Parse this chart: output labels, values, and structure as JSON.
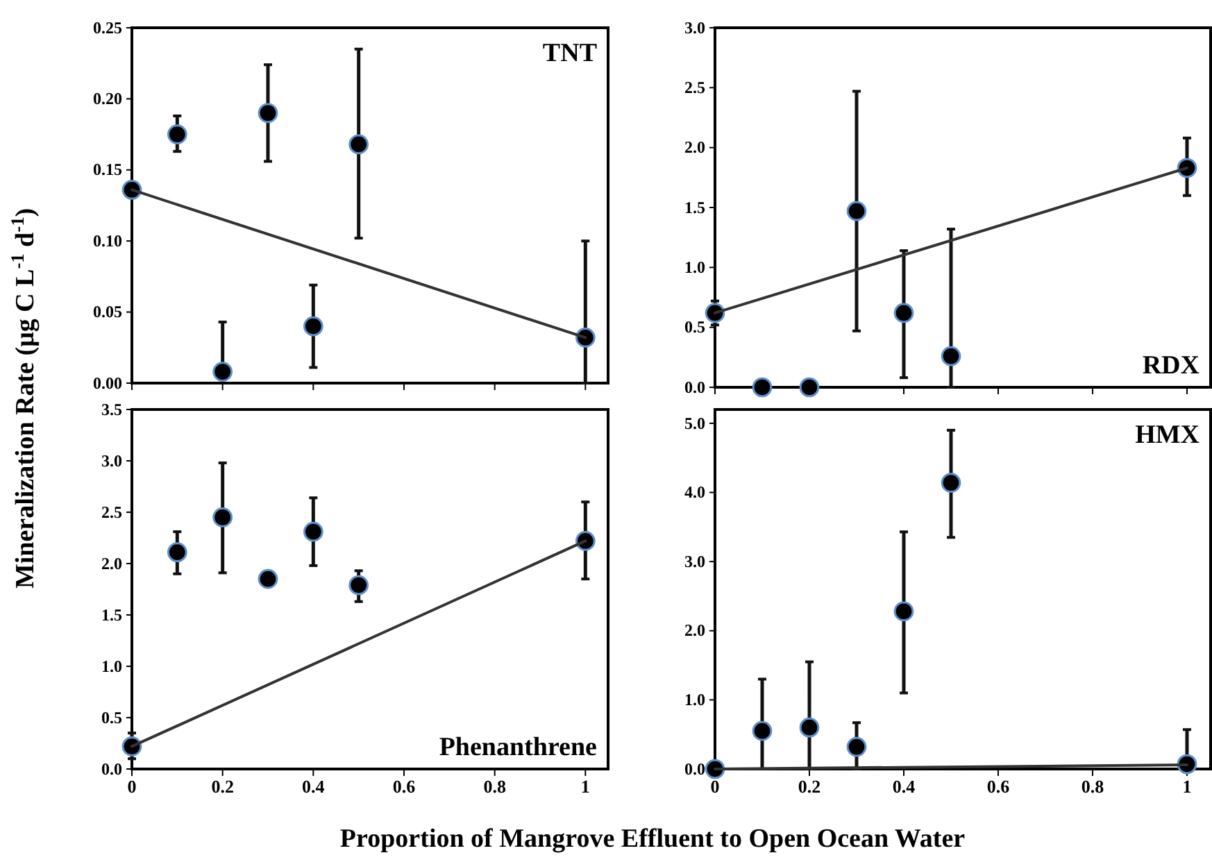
{
  "chart_data": [
    {
      "type": "scatter",
      "title": "TNT",
      "ylabel": "Mineralization Rate (μg C L$^{-1}$ d$^{-1}$)",
      "xlim": [
        0,
        1.05
      ],
      "xticks": [
        {
          "value": 0,
          "label": null
        },
        {
          "value": 0.2,
          "label": null
        },
        {
          "value": 0.4,
          "label": null
        },
        {
          "value": 0.6,
          "label": null
        },
        {
          "value": 0.8,
          "label": null
        },
        {
          "value": 1,
          "label": null
        }
      ],
      "ylim": [
        0,
        0.25
      ],
      "yticks": [
        {
          "value": 0,
          "label": "0.00"
        },
        {
          "value": 0.05,
          "label": "0.05"
        },
        {
          "value": 0.1,
          "label": "0.10"
        },
        {
          "value": 0.15,
          "label": "0.15"
        },
        {
          "value": 0.2,
          "label": "0.20"
        },
        {
          "value": 0.25,
          "label": "0.25"
        }
      ],
      "tick_labels": "y",
      "series": [
        {
          "color": "#000000",
          "marker": "circle",
          "x": [
            0,
            0.1,
            0.2,
            0.3,
            0.4,
            0.5,
            1
          ],
          "values": [
            0.136,
            0.175,
            0.008,
            0.19,
            0.04,
            0.168,
            0.032
          ],
          "errors": [
            null,
            [
              0.163,
              0.188
            ],
            [
              0.008,
              0.043
            ],
            [
              0.156,
              0.224
            ],
            [
              0.011,
              0.069
            ],
            [
              0.102,
              0.235
            ],
            [
              0,
              0.1
            ]
          ]
        },
        {
          "type": "line",
          "color": "#333333",
          "marker": "none",
          "line_style": "solid",
          "x": [
            0,
            1
          ],
          "values": [
            0.136,
            0.032
          ]
        }
      ]
    },
    {
      "type": "scatter",
      "title": "RDX",
      "xlim": [
        0,
        1.05
      ],
      "xticks": [
        {
          "value": 0,
          "label": null
        },
        {
          "value": 0.2,
          "label": null
        },
        {
          "value": 0.4,
          "label": null
        },
        {
          "value": 0.6,
          "label": null
        },
        {
          "value": 0.8,
          "label": null
        },
        {
          "value": 1,
          "label": null
        }
      ],
      "ylim": [
        0,
        3
      ],
      "yticks": [
        {
          "value": 0,
          "label": "0.0"
        },
        {
          "value": 0.5,
          "label": "0.5"
        },
        {
          "value": 1,
          "label": "1.0"
        },
        {
          "value": 1.5,
          "label": "1.5"
        },
        {
          "value": 2,
          "label": "2.0"
        },
        {
          "value": 2.5,
          "label": "2.5"
        },
        {
          "value": 3,
          "label": "3.0"
        }
      ],
      "tick_labels": "y",
      "series": [
        {
          "color": "#000000",
          "marker": "circle",
          "x": [
            0,
            0.1,
            0.2,
            0.3,
            0.4,
            0.5,
            1
          ],
          "values": [
            0.62,
            0,
            0,
            1.47,
            0.62,
            0.26,
            1.83
          ],
          "errors": [
            [
              0.52,
              0.72
            ],
            null,
            null,
            [
              0.47,
              2.47
            ],
            [
              0.08,
              1.14
            ],
            [
              0,
              1.32
            ],
            [
              1.6,
              2.08
            ]
          ]
        },
        {
          "type": "line",
          "color": "#333333",
          "marker": "none",
          "line_style": "solid",
          "x": [
            0,
            1
          ],
          "values": [
            0.62,
            1.83
          ]
        }
      ]
    },
    {
      "type": "scatter",
      "title": "Phenanthrene",
      "xlabel": "Proportion of Mangrove Effluent to Open Ocean Water",
      "xlim": [
        0,
        1.05
      ],
      "xticks": [
        0,
        0.2,
        0.4,
        0.6,
        0.8,
        1
      ],
      "ylim": [
        0,
        3.5
      ],
      "yticks": [
        {
          "value": 0,
          "label": "0.0"
        },
        {
          "value": 0.5,
          "label": "0.5"
        },
        {
          "value": 1,
          "label": "1.0"
        },
        {
          "value": 1.5,
          "label": "1.5"
        },
        {
          "value": 2,
          "label": "2.0"
        },
        {
          "value": 2.5,
          "label": "2.5"
        },
        {
          "value": 3,
          "label": "3.0"
        },
        {
          "value": 3.5,
          "label": "3.5"
        }
      ],
      "series": [
        {
          "color": "#000000",
          "marker": "circle",
          "x": [
            0,
            0.1,
            0.2,
            0.3,
            0.4,
            0.5,
            1
          ],
          "values": [
            0.22,
            2.11,
            2.45,
            1.85,
            2.31,
            1.79,
            2.22
          ],
          "errors": [
            [
              0.1,
              0.35
            ],
            [
              1.9,
              2.31
            ],
            [
              1.91,
              2.98
            ],
            null,
            [
              1.98,
              2.64
            ],
            [
              1.63,
              1.93
            ],
            [
              1.85,
              2.6
            ]
          ]
        },
        {
          "type": "line",
          "color": "#333333",
          "marker": "none",
          "line_style": "solid",
          "x": [
            0,
            1
          ],
          "values": [
            0.22,
            2.22
          ]
        }
      ]
    },
    {
      "type": "scatter",
      "title": "HMX",
      "xlim": [
        0,
        1.05
      ],
      "xticks": [
        0,
        0.2,
        0.4,
        0.6,
        0.8,
        1
      ],
      "ylim": [
        0,
        5.2
      ],
      "yticks": [
        {
          "value": 0,
          "label": "0.0"
        },
        {
          "value": 1,
          "label": "1.0"
        },
        {
          "value": 2,
          "label": "2.0"
        },
        {
          "value": 3,
          "label": "3.0"
        },
        {
          "value": 4,
          "label": "4.0"
        },
        {
          "value": 5,
          "label": "5.0"
        }
      ],
      "series": [
        {
          "color": "#000000",
          "marker": "circle",
          "x": [
            0,
            0.1,
            0.2,
            0.3,
            0.4,
            0.5,
            1
          ],
          "values": [
            0,
            0.55,
            0.6,
            0.32,
            2.28,
            4.14,
            0.07
          ],
          "errors": [
            null,
            [
              0,
              1.3
            ],
            [
              0,
              1.55
            ],
            [
              0,
              0.67
            ],
            [
              1.1,
              3.43
            ],
            [
              3.35,
              4.9
            ],
            [
              0,
              0.57
            ]
          ]
        },
        {
          "type": "line",
          "color": "#333333",
          "marker": "none",
          "line_style": "solid",
          "x": [
            0,
            1
          ],
          "values": [
            0,
            0.06
          ]
        }
      ]
    }
  ]
}
